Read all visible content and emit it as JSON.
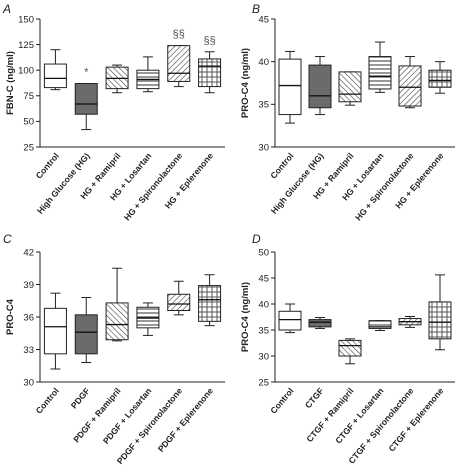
{
  "chart_data": [
    {
      "type": "boxplot",
      "panel_label": "A",
      "ylabel": "FBN-C (ng/ml)",
      "ylim": [
        25,
        150
      ],
      "yticks": [
        25,
        50,
        75,
        100,
        125,
        150
      ],
      "grid": false,
      "categories": [
        "Control",
        "High Glucose (HG)",
        "HG + Ramipril",
        "HG + Losartan",
        "HG + Spironolactone",
        "HG + Eplerenone"
      ],
      "boxes": [
        {
          "whisker_low": 81,
          "q1": 83,
          "median": 92,
          "q3": 106,
          "whisker_high": 120,
          "fill": "white"
        },
        {
          "whisker_low": 42,
          "q1": 57,
          "median": 67,
          "q3": 87,
          "whisker_high": 87,
          "fill": "dark"
        },
        {
          "whisker_low": 78,
          "q1": 82,
          "median": 92,
          "q3": 103,
          "whisker_high": 105,
          "fill": "hatch-back"
        },
        {
          "whisker_low": 79,
          "q1": 82,
          "median": 91,
          "q3": 100,
          "whisker_high": 113,
          "fill": "hatch-h"
        },
        {
          "whisker_low": 84,
          "q1": 89,
          "median": 97,
          "q3": 124,
          "whisker_high": 124,
          "fill": "hatch-fwd"
        },
        {
          "whisker_low": 78,
          "q1": 84,
          "median": 104,
          "q3": 111,
          "whisker_high": 118,
          "fill": "cross"
        }
      ],
      "annotations": [
        {
          "category": 1,
          "text": "*"
        },
        {
          "category": 4,
          "text": "§§"
        },
        {
          "category": 5,
          "text": "§§"
        }
      ]
    },
    {
      "type": "boxplot",
      "panel_label": "B",
      "ylabel": "PRO-C4 (ng/ml)",
      "ylim": [
        30,
        45
      ],
      "yticks": [
        30,
        35,
        40,
        45
      ],
      "grid": false,
      "categories": [
        "Control",
        "High Glucose (HG)",
        "HG + Ramipril",
        "HG + Losartan",
        "HG + Spironolactone",
        "HG + Eplerenone"
      ],
      "boxes": [
        {
          "whisker_low": 32.8,
          "q1": 33.8,
          "median": 37.2,
          "q3": 40.3,
          "whisker_high": 41.2,
          "fill": "white"
        },
        {
          "whisker_low": 33.8,
          "q1": 34.6,
          "median": 36.0,
          "q3": 39.6,
          "whisker_high": 40.6,
          "fill": "dark"
        },
        {
          "whisker_low": 34.9,
          "q1": 35.3,
          "median": 36.2,
          "q3": 38.8,
          "whisker_high": 38.8,
          "fill": "hatch-back"
        },
        {
          "whisker_low": 36.4,
          "q1": 36.8,
          "median": 38.3,
          "q3": 40.6,
          "whisker_high": 42.3,
          "fill": "hatch-h"
        },
        {
          "whisker_low": 34.6,
          "q1": 34.8,
          "median": 37.0,
          "q3": 39.5,
          "whisker_high": 40.6,
          "fill": "hatch-fwd"
        },
        {
          "whisker_low": 36.3,
          "q1": 37.0,
          "median": 37.8,
          "q3": 39.0,
          "whisker_high": 40.0,
          "fill": "cross"
        }
      ],
      "annotations": []
    },
    {
      "type": "boxplot",
      "panel_label": "C",
      "ylabel": "PRO-C4",
      "ylim": [
        30,
        42
      ],
      "yticks": [
        30,
        33,
        36,
        39,
        42
      ],
      "grid": false,
      "categories": [
        "Control",
        "PDGF",
        "PDGF + Ramipril",
        "PDGF + Losartan",
        "PDGF + Spironolactone",
        "PDGF + Eplerenone"
      ],
      "boxes": [
        {
          "whisker_low": 31.2,
          "q1": 32.6,
          "median": 35.1,
          "q3": 36.8,
          "whisker_high": 38.2,
          "fill": "white"
        },
        {
          "whisker_low": 31.8,
          "q1": 32.6,
          "median": 34.6,
          "q3": 36.2,
          "whisker_high": 37.8,
          "fill": "dark"
        },
        {
          "whisker_low": 33.8,
          "q1": 33.9,
          "median": 35.3,
          "q3": 37.3,
          "whisker_high": 40.5,
          "fill": "hatch-back"
        },
        {
          "whisker_low": 34.3,
          "q1": 35.0,
          "median": 35.9,
          "q3": 36.9,
          "whisker_high": 37.3,
          "fill": "hatch-h"
        },
        {
          "whisker_low": 36.2,
          "q1": 36.6,
          "median": 37.2,
          "q3": 38.1,
          "whisker_high": 39.3,
          "fill": "hatch-fwd"
        },
        {
          "whisker_low": 35.2,
          "q1": 35.6,
          "median": 37.6,
          "q3": 38.9,
          "whisker_high": 39.9,
          "fill": "cross"
        }
      ],
      "annotations": []
    },
    {
      "type": "boxplot",
      "panel_label": "D",
      "ylabel": "PRO-C4 (ng/ml)",
      "ylim": [
        25,
        50
      ],
      "yticks": [
        25,
        30,
        35,
        40,
        45,
        50
      ],
      "grid": false,
      "categories": [
        "Control",
        "CTGF",
        "CTGF + Ramipril",
        "CTGF + Losartan",
        "CTGF + Spironolactone",
        "CTGF + Eplerenone"
      ],
      "boxes": [
        {
          "whisker_low": 34.5,
          "q1": 35.0,
          "median": 37.0,
          "q3": 38.6,
          "whisker_high": 40.0,
          "fill": "white"
        },
        {
          "whisker_low": 35.3,
          "q1": 35.6,
          "median": 36.5,
          "q3": 37.0,
          "whisker_high": 37.4,
          "fill": "dark"
        },
        {
          "whisker_low": 28.5,
          "q1": 30.0,
          "median": 32.0,
          "q3": 33.0,
          "whisker_high": 33.3,
          "fill": "hatch-back"
        },
        {
          "whisker_low": 34.9,
          "q1": 35.3,
          "median": 35.6,
          "q3": 36.8,
          "whisker_high": 36.8,
          "fill": "hatch-h"
        },
        {
          "whisker_low": 35.5,
          "q1": 36.0,
          "median": 36.6,
          "q3": 37.2,
          "whisker_high": 37.6,
          "fill": "hatch-fwd"
        },
        {
          "whisker_low": 31.2,
          "q1": 33.3,
          "median": 36.5,
          "q3": 40.4,
          "whisker_high": 45.6,
          "fill": "cross"
        }
      ],
      "annotations": []
    }
  ]
}
